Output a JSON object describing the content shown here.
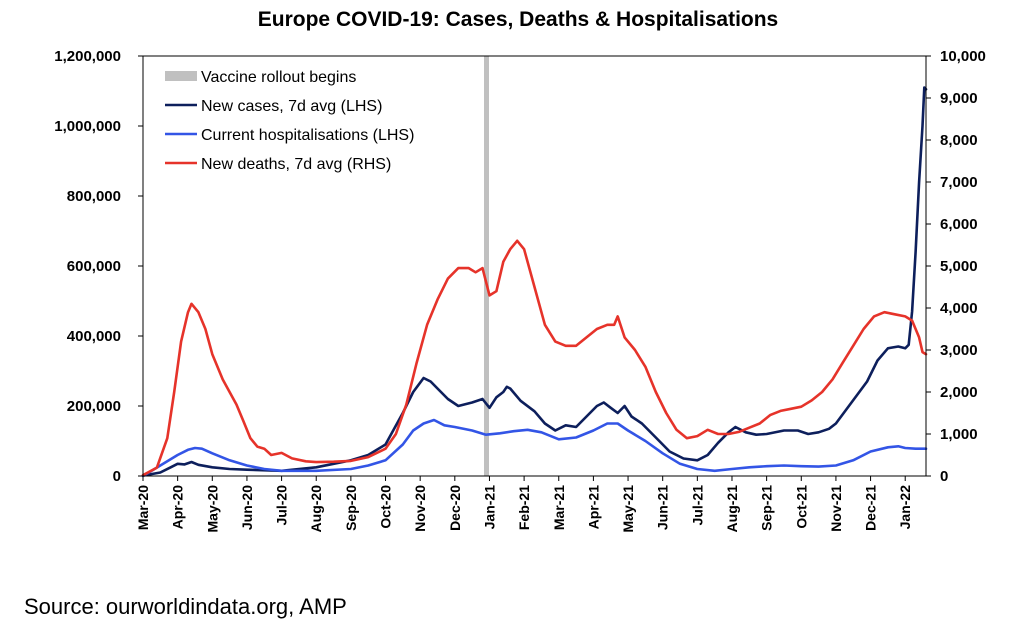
{
  "chart_data": {
    "type": "line",
    "title": "Europe COVID-19: Cases, Deaths & Hospitalisations",
    "source": "Source: ourworldindata.org, AMP",
    "x_axis": {
      "ticks": [
        "Mar-20",
        "Apr-20",
        "May-20",
        "Jun-20",
        "Jul-20",
        "Aug-20",
        "Sep-20",
        "Oct-20",
        "Nov-20",
        "Dec-20",
        "Jan-21",
        "Feb-21",
        "Mar-21",
        "Apr-21",
        "May-21",
        "Jun-21",
        "Jul-21",
        "Aug-21",
        "Sep-21",
        "Oct-21",
        "Nov-21",
        "Dec-21",
        "Jan-22"
      ],
      "range_months": [
        0,
        22.6
      ]
    },
    "y_left": {
      "range": [
        0,
        1200000
      ],
      "ticks": [
        "0",
        "200,000",
        "400,000",
        "600,000",
        "800,000",
        "1,000,000",
        "1,200,000"
      ],
      "tick_values": [
        0,
        200000,
        400000,
        600000,
        800000,
        1000000,
        1200000
      ]
    },
    "y_right": {
      "range": [
        0,
        10000
      ],
      "ticks": [
        "0",
        "1,000",
        "2,000",
        "3,000",
        "4,000",
        "5,000",
        "6,000",
        "7,000",
        "8,000",
        "9,000",
        "10,000"
      ],
      "tick_values": [
        0,
        1000,
        2000,
        3000,
        4000,
        5000,
        6000,
        7000,
        8000,
        9000,
        10000
      ]
    },
    "vaccine_rollout": {
      "label": "Vaccine rollout begins",
      "x_month": 9.9,
      "color": "#c0c0c0"
    },
    "legend_placement": "top-left",
    "series": [
      {
        "name": "New cases, 7d avg (LHS)",
        "axis": "left",
        "color": "#0d1f5c",
        "points": [
          [
            0,
            1000
          ],
          [
            0.5,
            10000
          ],
          [
            0.8,
            25000
          ],
          [
            1.0,
            35000
          ],
          [
            1.2,
            33000
          ],
          [
            1.4,
            40000
          ],
          [
            1.6,
            32000
          ],
          [
            2.0,
            25000
          ],
          [
            2.5,
            20000
          ],
          [
            3.0,
            18000
          ],
          [
            4.0,
            15000
          ],
          [
            5.0,
            25000
          ],
          [
            5.5,
            35000
          ],
          [
            6.0,
            45000
          ],
          [
            6.5,
            60000
          ],
          [
            7.0,
            90000
          ],
          [
            7.5,
            180000
          ],
          [
            7.8,
            240000
          ],
          [
            8.1,
            280000
          ],
          [
            8.3,
            270000
          ],
          [
            8.5,
            250000
          ],
          [
            8.8,
            220000
          ],
          [
            9.1,
            200000
          ],
          [
            9.5,
            210000
          ],
          [
            9.8,
            220000
          ],
          [
            10.0,
            195000
          ],
          [
            10.2,
            225000
          ],
          [
            10.4,
            240000
          ],
          [
            10.5,
            255000
          ],
          [
            10.6,
            250000
          ],
          [
            10.9,
            215000
          ],
          [
            11.3,
            185000
          ],
          [
            11.6,
            150000
          ],
          [
            11.9,
            130000
          ],
          [
            12.2,
            145000
          ],
          [
            12.5,
            140000
          ],
          [
            12.8,
            170000
          ],
          [
            13.1,
            200000
          ],
          [
            13.3,
            210000
          ],
          [
            13.5,
            195000
          ],
          [
            13.7,
            180000
          ],
          [
            13.9,
            200000
          ],
          [
            14.1,
            170000
          ],
          [
            14.4,
            150000
          ],
          [
            14.8,
            110000
          ],
          [
            15.2,
            70000
          ],
          [
            15.6,
            50000
          ],
          [
            16.0,
            45000
          ],
          [
            16.3,
            60000
          ],
          [
            16.6,
            95000
          ],
          [
            16.9,
            125000
          ],
          [
            17.1,
            140000
          ],
          [
            17.4,
            125000
          ],
          [
            17.7,
            118000
          ],
          [
            18.0,
            120000
          ],
          [
            18.5,
            130000
          ],
          [
            18.9,
            130000
          ],
          [
            19.2,
            120000
          ],
          [
            19.5,
            125000
          ],
          [
            19.8,
            135000
          ],
          [
            20.0,
            150000
          ],
          [
            20.3,
            190000
          ],
          [
            20.6,
            230000
          ],
          [
            20.9,
            270000
          ],
          [
            21.2,
            330000
          ],
          [
            21.5,
            365000
          ],
          [
            21.8,
            370000
          ],
          [
            22.0,
            365000
          ],
          [
            22.1,
            375000
          ],
          [
            22.2,
            470000
          ],
          [
            22.3,
            640000
          ],
          [
            22.4,
            840000
          ],
          [
            22.5,
            1000000
          ],
          [
            22.55,
            1110000
          ],
          [
            22.6,
            1105000
          ]
        ]
      },
      {
        "name": "Current hospitalisations (LHS)",
        "axis": "left",
        "color": "#3355e6",
        "points": [
          [
            0,
            0
          ],
          [
            0.5,
            30000
          ],
          [
            1.0,
            60000
          ],
          [
            1.3,
            75000
          ],
          [
            1.5,
            80000
          ],
          [
            1.7,
            78000
          ],
          [
            2.0,
            65000
          ],
          [
            2.5,
            45000
          ],
          [
            3.0,
            30000
          ],
          [
            3.5,
            20000
          ],
          [
            4.0,
            15000
          ],
          [
            5.0,
            15000
          ],
          [
            6.0,
            20000
          ],
          [
            6.5,
            30000
          ],
          [
            7.0,
            45000
          ],
          [
            7.5,
            90000
          ],
          [
            7.8,
            130000
          ],
          [
            8.1,
            150000
          ],
          [
            8.4,
            160000
          ],
          [
            8.7,
            145000
          ],
          [
            9.0,
            140000
          ],
          [
            9.5,
            130000
          ],
          [
            9.9,
            118000
          ],
          [
            10.3,
            122000
          ],
          [
            10.7,
            128000
          ],
          [
            11.1,
            132000
          ],
          [
            11.5,
            125000
          ],
          [
            12.0,
            105000
          ],
          [
            12.5,
            110000
          ],
          [
            13.0,
            130000
          ],
          [
            13.4,
            150000
          ],
          [
            13.7,
            150000
          ],
          [
            14.0,
            130000
          ],
          [
            14.5,
            100000
          ],
          [
            15.0,
            65000
          ],
          [
            15.5,
            35000
          ],
          [
            16.0,
            20000
          ],
          [
            16.5,
            15000
          ],
          [
            17.0,
            20000
          ],
          [
            17.5,
            25000
          ],
          [
            18.0,
            28000
          ],
          [
            18.5,
            30000
          ],
          [
            19.0,
            28000
          ],
          [
            19.5,
            27000
          ],
          [
            20.0,
            30000
          ],
          [
            20.5,
            45000
          ],
          [
            21.0,
            70000
          ],
          [
            21.5,
            82000
          ],
          [
            21.8,
            85000
          ],
          [
            22.0,
            80000
          ],
          [
            22.3,
            78000
          ],
          [
            22.6,
            78000
          ]
        ]
      },
      {
        "name": "New deaths, 7d avg (RHS)",
        "axis": "right",
        "color": "#e6332a",
        "points": [
          [
            0,
            20
          ],
          [
            0.4,
            200
          ],
          [
            0.7,
            900
          ],
          [
            0.9,
            2000
          ],
          [
            1.1,
            3200
          ],
          [
            1.3,
            3900
          ],
          [
            1.4,
            4100
          ],
          [
            1.6,
            3900
          ],
          [
            1.8,
            3500
          ],
          [
            2.0,
            2900
          ],
          [
            2.3,
            2300
          ],
          [
            2.7,
            1700
          ],
          [
            2.9,
            1300
          ],
          [
            3.1,
            900
          ],
          [
            3.3,
            700
          ],
          [
            3.5,
            650
          ],
          [
            3.7,
            500
          ],
          [
            4.0,
            550
          ],
          [
            4.3,
            420
          ],
          [
            4.7,
            350
          ],
          [
            5.0,
            330
          ],
          [
            5.5,
            340
          ],
          [
            6.0,
            360
          ],
          [
            6.5,
            450
          ],
          [
            7.0,
            650
          ],
          [
            7.3,
            1000
          ],
          [
            7.6,
            1700
          ],
          [
            7.9,
            2700
          ],
          [
            8.2,
            3600
          ],
          [
            8.5,
            4200
          ],
          [
            8.8,
            4700
          ],
          [
            9.1,
            4950
          ],
          [
            9.4,
            4950
          ],
          [
            9.6,
            4850
          ],
          [
            9.8,
            4950
          ],
          [
            10.0,
            4300
          ],
          [
            10.2,
            4400
          ],
          [
            10.4,
            5100
          ],
          [
            10.6,
            5400
          ],
          [
            10.8,
            5600
          ],
          [
            11.0,
            5400
          ],
          [
            11.3,
            4500
          ],
          [
            11.6,
            3600
          ],
          [
            11.9,
            3200
          ],
          [
            12.2,
            3100
          ],
          [
            12.5,
            3100
          ],
          [
            12.8,
            3300
          ],
          [
            13.1,
            3500
          ],
          [
            13.4,
            3600
          ],
          [
            13.6,
            3600
          ],
          [
            13.7,
            3800
          ],
          [
            13.9,
            3300
          ],
          [
            14.2,
            3000
          ],
          [
            14.5,
            2600
          ],
          [
            14.8,
            2000
          ],
          [
            15.1,
            1500
          ],
          [
            15.4,
            1100
          ],
          [
            15.7,
            900
          ],
          [
            16.0,
            950
          ],
          [
            16.3,
            1100
          ],
          [
            16.6,
            1000
          ],
          [
            16.9,
            1000
          ],
          [
            17.2,
            1050
          ],
          [
            17.5,
            1150
          ],
          [
            17.8,
            1250
          ],
          [
            18.1,
            1450
          ],
          [
            18.4,
            1550
          ],
          [
            18.7,
            1600
          ],
          [
            19.0,
            1650
          ],
          [
            19.3,
            1800
          ],
          [
            19.6,
            2000
          ],
          [
            19.9,
            2300
          ],
          [
            20.2,
            2700
          ],
          [
            20.5,
            3100
          ],
          [
            20.8,
            3500
          ],
          [
            21.1,
            3800
          ],
          [
            21.4,
            3900
          ],
          [
            21.7,
            3850
          ],
          [
            22.0,
            3800
          ],
          [
            22.2,
            3700
          ],
          [
            22.4,
            3300
          ],
          [
            22.5,
            2950
          ],
          [
            22.6,
            2900
          ]
        ]
      }
    ]
  }
}
